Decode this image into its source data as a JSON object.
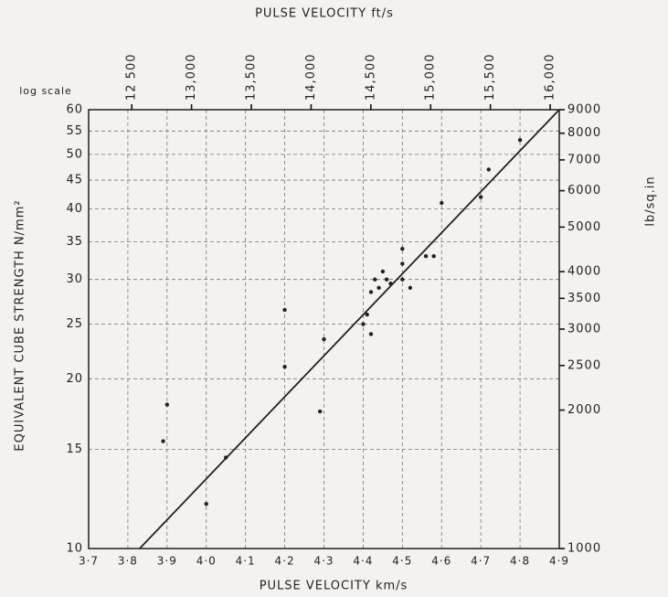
{
  "chart_data": {
    "type": "scatter",
    "title": "PULSE VELOCITY ft/s",
    "x_label": "PULSE VELOCITY km/s",
    "y_label": "EQUIVALENT CUBE STRENGTH N/mm²",
    "y2_label": "lb/sq.in",
    "y_scale_label": "log scale",
    "log_y": true,
    "grid": true,
    "color": "#222222",
    "xlim": [
      3.7,
      4.9
    ],
    "xticks": [
      {
        "value": 3.7,
        "label": "3·7"
      },
      {
        "value": 3.8,
        "label": "3·8"
      },
      {
        "value": 3.9,
        "label": "3·9"
      },
      {
        "value": 4.0,
        "label": "4·0"
      },
      {
        "value": 4.1,
        "label": "4·1"
      },
      {
        "value": 4.2,
        "label": "4·2"
      },
      {
        "value": 4.3,
        "label": "4·3"
      },
      {
        "value": 4.4,
        "label": "4·4"
      },
      {
        "value": 4.5,
        "label": "4·5"
      },
      {
        "value": 4.6,
        "label": "4·6"
      },
      {
        "value": 4.7,
        "label": "4·7"
      },
      {
        "value": 4.8,
        "label": "4·8"
      },
      {
        "value": 4.9,
        "label": "4·9"
      }
    ],
    "ylim": [
      10,
      60
    ],
    "yticks": [
      10,
      15,
      20,
      25,
      30,
      35,
      40,
      45,
      50,
      55,
      60
    ],
    "x2lim": [
      12139,
      16076
    ],
    "x2ticks": [
      {
        "value": 12500,
        "label": "12 500"
      },
      {
        "value": 13000,
        "label": "13,000"
      },
      {
        "value": 13500,
        "label": "13,500"
      },
      {
        "value": 14000,
        "label": "14,000"
      },
      {
        "value": 14500,
        "label": "14,500"
      },
      {
        "value": 15000,
        "label": "15,000"
      },
      {
        "value": 15500,
        "label": "15,500"
      },
      {
        "value": 16000,
        "label": "16,000"
      }
    ],
    "y2lim": [
      1000,
      9000
    ],
    "y2ticks": [
      1000,
      2000,
      2500,
      3000,
      3500,
      4000,
      5000,
      6000,
      7000,
      8000,
      9000
    ],
    "x": [
      3.89,
      3.9,
      4.0,
      4.05,
      4.2,
      4.2,
      4.29,
      4.3,
      4.4,
      4.42,
      4.41,
      4.42,
      4.43,
      4.44,
      4.45,
      4.46,
      4.47,
      4.5,
      4.5,
      4.5,
      4.52,
      4.56,
      4.58,
      4.6,
      4.7,
      4.72,
      4.8
    ],
    "values": [
      15.5,
      18,
      12,
      14.5,
      21,
      26.5,
      17.5,
      23.5,
      25,
      24,
      26,
      28.5,
      30,
      29,
      31,
      30,
      29.5,
      32,
      30,
      34,
      29,
      33,
      33,
      41,
      42,
      47,
      53
    ],
    "fit_line": {
      "x": [
        3.83,
        4.9
      ],
      "y": [
        10,
        60
      ]
    }
  }
}
